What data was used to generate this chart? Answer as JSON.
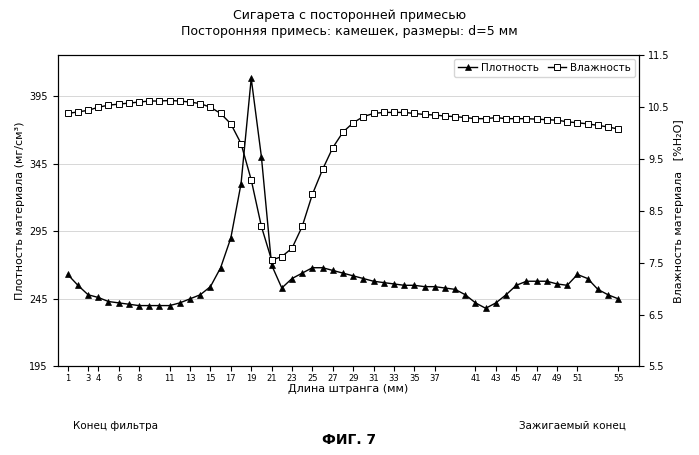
{
  "title_line1": "Сигарета с посторонней примесью",
  "title_line2": "Посторонняя примесь: камешек, размеры: d=5 мм",
  "xlabel": "Длина штранга (мм)",
  "ylabel_left": "Плотность материала (мг/см³)",
  "ylabel_right": "Влажность материала   [%H₂O]",
  "left_label": "Конец фильтра",
  "right_label": "Зажигаемый конец",
  "fig_label": "ФИГ. 7",
  "legend_density": "Плотность",
  "legend_moisture": "Влажность",
  "ylim_left": [
    195,
    425
  ],
  "ylim_right": [
    5.5,
    11.5
  ],
  "yticks_left": [
    195,
    245,
    295,
    345,
    395
  ],
  "yticks_right": [
    5.5,
    6.5,
    7.5,
    8.5,
    9.5,
    10.5,
    11.5
  ],
  "x_values": [
    1,
    2,
    3,
    4,
    5,
    6,
    7,
    8,
    9,
    10,
    11,
    12,
    13,
    14,
    15,
    16,
    17,
    18,
    19,
    20,
    21,
    22,
    23,
    24,
    25,
    26,
    27,
    28,
    29,
    30,
    31,
    32,
    33,
    34,
    35,
    36,
    37,
    38,
    39,
    40,
    41,
    42,
    43,
    44,
    45,
    46,
    47,
    48,
    49,
    50,
    51,
    52,
    53,
    54,
    55
  ],
  "density_values": [
    263,
    255,
    248,
    246,
    243,
    242,
    241,
    240,
    240,
    240,
    240,
    242,
    245,
    248,
    254,
    268,
    290,
    330,
    408,
    350,
    270,
    253,
    260,
    264,
    268,
    268,
    266,
    264,
    262,
    260,
    258,
    257,
    256,
    255,
    255,
    254,
    254,
    253,
    252,
    248,
    242,
    238,
    242,
    248,
    255,
    258,
    258,
    258,
    256,
    255,
    263,
    260,
    252,
    248,
    245
  ],
  "moisture_values": [
    10.38,
    10.41,
    10.44,
    10.5,
    10.54,
    10.56,
    10.58,
    10.6,
    10.62,
    10.62,
    10.63,
    10.62,
    10.6,
    10.57,
    10.5,
    10.38,
    10.18,
    9.8,
    9.1,
    8.2,
    7.55,
    7.62,
    7.78,
    8.2,
    8.82,
    9.3,
    9.72,
    10.02,
    10.2,
    10.32,
    10.38,
    10.4,
    10.4,
    10.4,
    10.38,
    10.36,
    10.35,
    10.33,
    10.32,
    10.3,
    10.28,
    10.28,
    10.3,
    10.28,
    10.28,
    10.28,
    10.27,
    10.26,
    10.25,
    10.22,
    10.2,
    10.18,
    10.15,
    10.12,
    10.08
  ],
  "background_color": "#ffffff"
}
